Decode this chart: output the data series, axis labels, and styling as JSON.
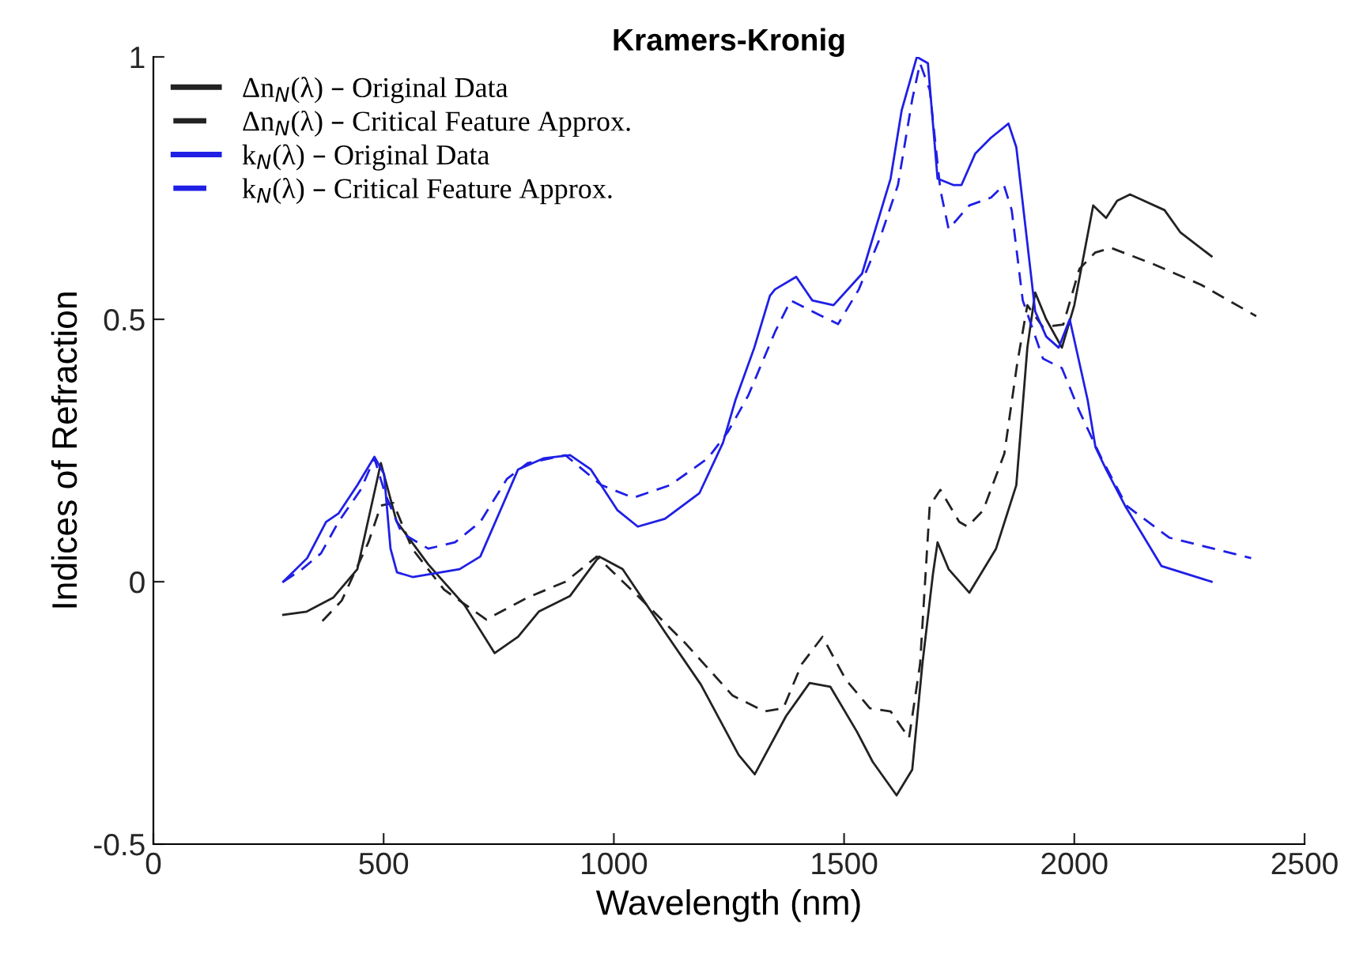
{
  "chart_data": {
    "type": "line",
    "title": "Kramers-Kronig",
    "xlabel": "Wavelength (nm)",
    "ylabel": "Indices of Refraction",
    "xlim": [
      0,
      2500
    ],
    "xticks": [
      0,
      500,
      1000,
      1500,
      2000,
      2500
    ],
    "ylim": [
      -0.5,
      1
    ],
    "yticks": [
      -0.5,
      0,
      0.5,
      1
    ],
    "grid": false,
    "legend": "top left",
    "marker": "none",
    "series": [
      {
        "name": "Δn$_{N}$(λ) – Original Data",
        "color": "#222222",
        "line_style": "solid",
        "x": [
          282,
          333,
          391,
          443,
          494,
          528,
          597,
          676,
          741,
          792,
          837,
          905,
          968,
          1019,
          1111,
          1189,
          1271,
          1306,
          1374,
          1425,
          1470,
          1528,
          1562,
          1614,
          1648,
          1670,
          1693,
          1703,
          1727,
          1772,
          1830,
          1874,
          1898,
          1915,
          1939,
          1973,
          2000,
          2041,
          2069,
          2093,
          2121,
          2196,
          2230,
          2298
        ],
        "values": [
          -0.063,
          -0.057,
          -0.03,
          0.024,
          0.226,
          0.115,
          0.033,
          -0.045,
          -0.136,
          -0.105,
          -0.057,
          -0.027,
          0.048,
          0.024,
          -0.096,
          -0.196,
          -0.33,
          -0.367,
          -0.256,
          -0.193,
          -0.2,
          -0.286,
          -0.343,
          -0.407,
          -0.358,
          -0.157,
          0.015,
          0.075,
          0.024,
          -0.021,
          0.063,
          0.184,
          0.446,
          0.551,
          0.5,
          0.446,
          0.527,
          0.717,
          0.693,
          0.726,
          0.738,
          0.708,
          0.666,
          0.62
        ]
      },
      {
        "name": "Δn$_{N}$(λ) – Critical Feature Approx.",
        "color": "#222222",
        "line_style": "dashed",
        "x": [
          367,
          409,
          467,
          494,
          521,
          562,
          631,
          723,
          813,
          895,
          963,
          1052,
          1155,
          1258,
          1327,
          1368,
          1408,
          1453,
          1504,
          1556,
          1601,
          1641,
          1665,
          1686,
          1709,
          1750,
          1768,
          1802,
          1848,
          1876,
          1898,
          1932,
          1976,
          2011,
          2045,
          2080,
          2172,
          2275,
          2395
        ],
        "values": [
          -0.075,
          -0.036,
          0.075,
          0.145,
          0.15,
          0.063,
          -0.015,
          -0.072,
          -0.03,
          0,
          0.048,
          -0.027,
          -0.117,
          -0.217,
          -0.247,
          -0.241,
          -0.157,
          -0.105,
          -0.187,
          -0.241,
          -0.247,
          -0.298,
          -0.157,
          0.145,
          0.175,
          0.114,
          0.105,
          0.136,
          0.244,
          0.416,
          0.527,
          0.485,
          0.49,
          0.596,
          0.627,
          0.636,
          0.605,
          0.566,
          0.506
        ]
      },
      {
        "name": "k$_{N}$(λ) – Original Data",
        "color": "#1f1fe6",
        "line_style": "solid",
        "x": [
          282,
          334,
          375,
          402,
          443,
          480,
          501,
          515,
          529,
          563,
          665,
          710,
          758,
          792,
          847,
          905,
          950,
          1008,
          1052,
          1111,
          1186,
          1237,
          1264,
          1305,
          1339,
          1350,
          1396,
          1431,
          1477,
          1539,
          1566,
          1601,
          1625,
          1658,
          1682,
          1703,
          1737,
          1755,
          1785,
          1819,
          1857,
          1874,
          1915,
          1939,
          1966,
          1990,
          2029,
          2046,
          2069,
          2110,
          2189,
          2298
        ],
        "values": [
          0,
          0.045,
          0.114,
          0.13,
          0.184,
          0.238,
          0.205,
          0.063,
          0.018,
          0.009,
          0.024,
          0.048,
          0.145,
          0.214,
          0.235,
          0.241,
          0.214,
          0.136,
          0.105,
          0.12,
          0.169,
          0.265,
          0.346,
          0.446,
          0.545,
          0.557,
          0.581,
          0.536,
          0.527,
          0.587,
          0.666,
          0.768,
          0.898,
          1.0,
          0.988,
          0.768,
          0.756,
          0.756,
          0.816,
          0.846,
          0.873,
          0.828,
          0.515,
          0.467,
          0.446,
          0.5,
          0.346,
          0.256,
          0.214,
          0.145,
          0.03,
          0
        ]
      },
      {
        "name": "k$_{N}$(λ) – Critical Feature Approx.",
        "color": "#1f1fe6",
        "line_style": "dashed",
        "x": [
          282,
          323,
          364,
          402,
          450,
          480,
          504,
          539,
          597,
          655,
          710,
          768,
          813,
          895,
          973,
          1042,
          1122,
          1204,
          1248,
          1292,
          1350,
          1384,
          1431,
          1487,
          1532,
          1579,
          1617,
          1648,
          1665,
          1686,
          1709,
          1727,
          1772,
          1819,
          1847,
          1864,
          1888,
          1932,
          1973,
          2011,
          2059,
          2113,
          2206,
          2343,
          2384
        ],
        "values": [
          0,
          0.024,
          0.054,
          0.114,
          0.175,
          0.235,
          0.166,
          0.093,
          0.063,
          0.075,
          0.114,
          0.196,
          0.226,
          0.241,
          0.184,
          0.16,
          0.184,
          0.235,
          0.286,
          0.355,
          0.476,
          0.536,
          0.515,
          0.491,
          0.557,
          0.657,
          0.756,
          0.919,
          0.988,
          0.937,
          0.747,
          0.672,
          0.717,
          0.732,
          0.756,
          0.708,
          0.536,
          0.425,
          0.407,
          0.325,
          0.235,
          0.145,
          0.084,
          0.054,
          0.045
        ]
      }
    ]
  }
}
